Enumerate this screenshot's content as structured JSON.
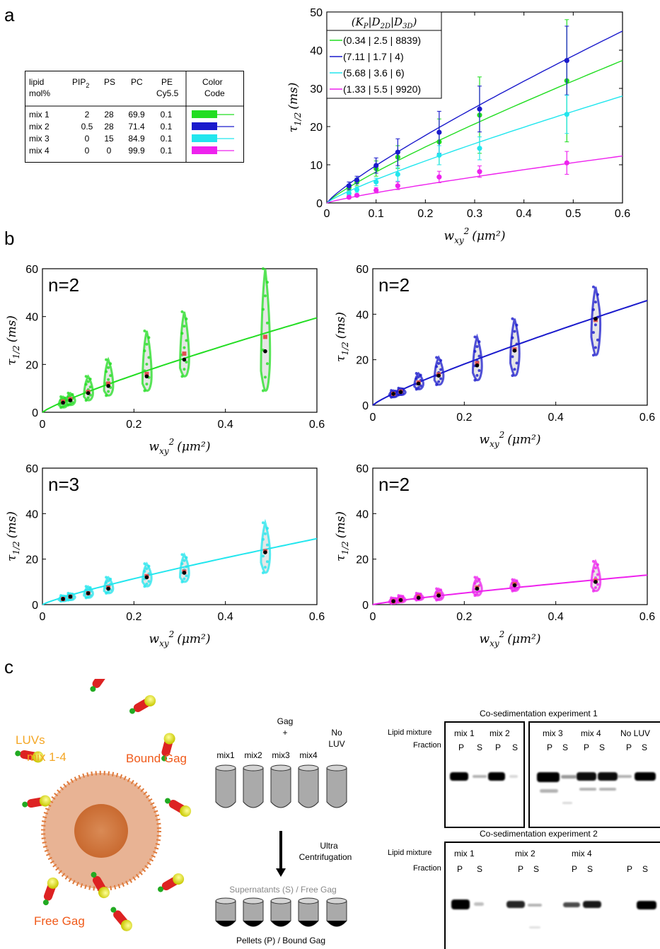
{
  "panel_labels": {
    "a": "a",
    "b": "b",
    "c": "c"
  },
  "colors": {
    "mix1": "#22dd22",
    "mix2": "#1a1acc",
    "mix3": "#22e6ee",
    "mix4": "#ee22ee"
  },
  "lipid_table": {
    "headers": [
      "lipid mol%",
      "PIP2",
      "PS",
      "PC",
      "PE Cy5.5",
      "Color Code"
    ],
    "header_lines": {
      "c0": [
        "lipid",
        "mol%"
      ],
      "pip_main": "PIP",
      "pip_sub": "2",
      "ps": "PS",
      "pc": "PC",
      "pe": [
        "PE",
        "Cy5.5"
      ],
      "cc": [
        "Color",
        "Code"
      ]
    },
    "rows": [
      {
        "name": "mix 1",
        "pip2": "2",
        "ps": "28",
        "pc": "69.9",
        "pe": "0.1",
        "color": "#22dd22"
      },
      {
        "name": "mix 2",
        "pip2": "0.5",
        "ps": "28",
        "pc": "71.4",
        "pe": "0.1",
        "color": "#1a1acc"
      },
      {
        "name": "mix 3",
        "pip2": "0",
        "ps": "15",
        "pc": "84.9",
        "pe": "0.1",
        "color": "#22e6ee"
      },
      {
        "name": "mix 4",
        "pip2": "0",
        "ps": "0",
        "pc": "99.9",
        "pe": "0.1",
        "color": "#ee22ee"
      }
    ]
  },
  "axis_text": {
    "xlabel": "w_xy² (μm²)",
    "ylabel": "τ_1/2 (ms)",
    "xl_main": "w",
    "xl_sub": "xy",
    "xl_sup": "2",
    "xl_unit": "(μm²)",
    "yl_main": "τ",
    "yl_sub": "1/2",
    "yl_unit": "(ms)"
  },
  "chart_data": [
    {
      "type": "line",
      "legend_title": "(K_P|D_2D|D_3D)",
      "x": [
        0.045,
        0.061,
        0.1,
        0.144,
        0.228,
        0.31,
        0.487
      ],
      "xlim": [
        0,
        0.6
      ],
      "ylim": [
        0,
        50
      ],
      "xticks": [
        "0",
        "0.1",
        "0.2",
        "0.3",
        "0.4",
        "0.5",
        "0.6"
      ],
      "yticks": [
        "0",
        "10",
        "20",
        "30",
        "40",
        "50"
      ],
      "series": [
        {
          "name": "(0.34 | 2.5 | 8839)",
          "color": "#22dd22",
          "values": [
            4.0,
            5.5,
            9.0,
            12.0,
            16.0,
            23.0,
            32.0
          ],
          "errors": [
            0.8,
            1.0,
            2.0,
            3.0,
            6.0,
            10.0,
            16.0
          ],
          "fit_end": 37.3
        },
        {
          "name": "(7.11 | 1.7 | 4)",
          "color": "#1a1acc",
          "values": [
            4.5,
            6.0,
            9.8,
            13.3,
            18.5,
            24.6,
            37.3
          ],
          "errors": [
            1.0,
            1.0,
            2.0,
            3.5,
            5.5,
            6.0,
            9.0
          ],
          "fit_end": 45.0
        },
        {
          "name": "(5.68 | 3.6 | 6)",
          "color": "#22e6ee",
          "values": [
            2.5,
            3.5,
            5.5,
            7.5,
            12.5,
            14.3,
            23.2
          ],
          "errors": [
            0.5,
            0.7,
            1.0,
            1.8,
            2.5,
            3.0,
            5.0
          ],
          "fit_end": 28.0
        },
        {
          "name": "(1.33 | 5.5 | 9920)",
          "color": "#ee22ee",
          "values": [
            1.5,
            2.0,
            3.3,
            4.5,
            6.8,
            8.2,
            10.5
          ],
          "errors": [
            0.4,
            0.4,
            0.7,
            1.0,
            1.5,
            1.5,
            3.0
          ],
          "fit_end": 12.3
        }
      ]
    },
    {
      "type": "scatter",
      "label": "n=2",
      "color": "#22dd22",
      "x": [
        0.045,
        0.061,
        0.1,
        0.144,
        0.228,
        0.31,
        0.487
      ],
      "median": [
        4.0,
        5.0,
        8.0,
        11.0,
        15.0,
        22.0,
        25.5
      ],
      "mean": [
        4.5,
        5.5,
        8.5,
        12.0,
        16.0,
        24.5,
        31.5
      ],
      "range_lo": [
        2,
        3,
        5,
        7,
        9,
        15,
        9
      ],
      "range_hi": [
        6.5,
        8,
        15,
        22,
        34,
        42,
        60
      ],
      "fit_end": 39.5,
      "xlim": [
        0,
        0.6
      ],
      "ylim": [
        0,
        60
      ]
    },
    {
      "type": "scatter",
      "label": "n=2",
      "color": "#1a1acc",
      "x": [
        0.045,
        0.061,
        0.1,
        0.144,
        0.228,
        0.31,
        0.487
      ],
      "median": [
        5.0,
        5.8,
        9.5,
        13.0,
        17.5,
        24.0,
        38.0
      ],
      "mean": [
        5.0,
        6.0,
        10.0,
        13.5,
        18.5,
        24.5,
        37.5
      ],
      "range_lo": [
        3.5,
        4.5,
        7,
        9,
        11,
        13,
        22
      ],
      "range_hi": [
        6.5,
        7.5,
        14,
        21,
        30,
        38,
        52
      ],
      "fit_end": 46.0,
      "xlim": [
        0,
        0.6
      ],
      "ylim": [
        0,
        60
      ]
    },
    {
      "type": "scatter",
      "label": "n=3",
      "color": "#22e6ee",
      "x": [
        0.045,
        0.061,
        0.1,
        0.144,
        0.228,
        0.31,
        0.487
      ],
      "median": [
        2.5,
        3.5,
        5.0,
        7.0,
        12.0,
        14.0,
        23.0
      ],
      "mean": [
        2.5,
        3.5,
        5.0,
        7.5,
        12.5,
        14.5,
        23.5
      ],
      "range_lo": [
        1.5,
        2,
        3,
        5,
        8,
        10,
        14
      ],
      "range_hi": [
        4,
        5,
        8,
        12,
        18,
        22,
        36
      ],
      "fit_end": 29.0,
      "xlim": [
        0,
        0.6
      ],
      "ylim": [
        0,
        60
      ]
    },
    {
      "type": "scatter",
      "label": "n=2",
      "color": "#ee22ee",
      "x": [
        0.045,
        0.061,
        0.1,
        0.144,
        0.228,
        0.31,
        0.487
      ],
      "median": [
        1.5,
        2.0,
        3.0,
        4.0,
        7.0,
        8.5,
        10.0
      ],
      "mean": [
        1.5,
        2.0,
        3.5,
        4.5,
        7.5,
        9.0,
        10.5
      ],
      "range_lo": [
        0.5,
        1,
        2,
        2,
        4,
        6,
        6
      ],
      "range_hi": [
        3,
        4,
        5,
        7,
        12,
        11,
        19
      ],
      "fit_end": 13.0,
      "xlim": [
        0,
        0.6
      ],
      "ylim": [
        0,
        60
      ]
    }
  ],
  "panel_c": {
    "luv_label": [
      "LUVs",
      "mix 1-4"
    ],
    "bound_gag": "Bound Gag",
    "free_gag": "Free Gag",
    "gag_plus": [
      "Gag",
      "+"
    ],
    "tube_labels": [
      "mix1",
      "mix2",
      "mix3",
      "mix4",
      "No LUV"
    ],
    "no_luv_lines": [
      "No",
      "LUV"
    ],
    "ultra": [
      "Ultra",
      "Centrifugation"
    ],
    "supernatants": "Supernatants (S) / Free Gag",
    "pellets": "Pellets (P) / Bound Gag",
    "exp1_title": "Co-sedimentation experiment 1",
    "exp2_title": "Co-sedimentation experiment 2",
    "lipid_mixture": "Lipid mixture",
    "fraction": "Fraction",
    "exp1_lanes_left": [
      "mix 1",
      "mix 2"
    ],
    "exp1_lanes_right": [
      "mix 3",
      "mix 4",
      "No LUV"
    ],
    "exp2_lanes": [
      "mix 1",
      "mix 2",
      "mix 4"
    ],
    "P": "P",
    "S": "S"
  }
}
